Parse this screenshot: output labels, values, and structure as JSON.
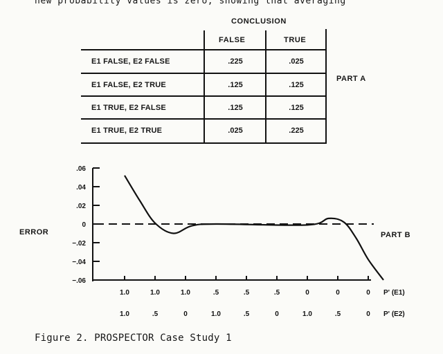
{
  "top_text": "new probability values is zero, showing that averaging",
  "table": {
    "header": "CONCLUSION",
    "columns": [
      "FALSE",
      "TRUE"
    ],
    "rows": [
      {
        "label": "E1 FALSE, E2 FALSE",
        "false": ".225",
        "true": ".025"
      },
      {
        "label": "E1 FALSE, E2 TRUE",
        "false": ".125",
        "true": ".125"
      },
      {
        "label": "E1 TRUE, E2 FALSE",
        "false": ".125",
        "true": ".125"
      },
      {
        "label": "E1 TRUE, E2 TRUE",
        "false": ".025",
        "true": ".225"
      }
    ],
    "part_label": "PART A"
  },
  "chart_data": {
    "type": "line",
    "ylabel": "ERROR",
    "ylim": [
      -0.06,
      0.06
    ],
    "yticks": [
      ".06",
      ".04",
      ".02",
      "0",
      "−.02",
      "−.04",
      "−.06"
    ],
    "x_rows": [
      {
        "values": [
          "1.0",
          "1.0",
          "1.0",
          ".5",
          ".5",
          ".5",
          "0",
          "0",
          "0"
        ],
        "label": "P' (E1)"
      },
      {
        "values": [
          "1.0",
          ".5",
          "0",
          "1.0",
          ".5",
          "0",
          "1.0",
          ".5",
          "0"
        ],
        "label": "P' (E2)"
      }
    ],
    "part_label": "PART B",
    "series": [
      {
        "style": "solid",
        "points": [
          [
            0,
            0.052
          ],
          [
            0.5,
            0.025
          ],
          [
            1,
            0.001
          ],
          [
            1.6,
            -0.01
          ],
          [
            2.2,
            -0.002
          ],
          [
            3,
            0
          ],
          [
            6,
            -0.001
          ],
          [
            6.7,
            0.006
          ],
          [
            7.2,
            0.002
          ],
          [
            7.6,
            -0.015
          ],
          [
            8,
            -0.038
          ],
          [
            8.5,
            -0.06
          ]
        ]
      },
      {
        "style": "dashed",
        "points": [
          [
            0,
            0
          ],
          [
            9,
            0
          ]
        ]
      }
    ]
  },
  "caption": "Figure 2.   PROSPECTOR Case Study 1"
}
